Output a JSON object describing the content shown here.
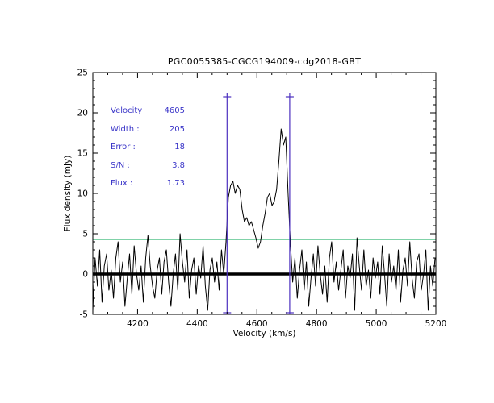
{
  "chart_data": {
    "type": "line",
    "title": "PGC0055385-CGCG194009-cdg2018-GBT",
    "xlabel": "Velocity (km/s)",
    "ylabel": "Flux density (mJy)",
    "xlim": [
      4050,
      5200
    ],
    "ylim": [
      -5,
      25
    ],
    "x_ticks": [
      4200,
      4400,
      4600,
      4800,
      5000,
      5200
    ],
    "y_ticks": [
      -5,
      0,
      5,
      10,
      15,
      20,
      25
    ],
    "x_minor_step": 50,
    "y_minor_step": 1,
    "grid": "off",
    "legend": "none",
    "baseline_y": 0,
    "threshold_line": {
      "y": 4.3,
      "color": "#00a651"
    },
    "signal_boundaries": {
      "x": [
        4500,
        4710
      ],
      "y_top": 22,
      "y_bottom": -4.8,
      "color": "#4b2fbf"
    },
    "annotation_color": "#3a35c8",
    "annotations": [
      {
        "label": "Velocity",
        "value": "4605"
      },
      {
        "label": "Width :",
        "value": "205"
      },
      {
        "label": "Error :",
        "value": "18"
      },
      {
        "label": "S/N :",
        "value": "3.8"
      },
      {
        "label": "Flux :",
        "value": "1.73"
      }
    ],
    "series": [
      {
        "name": "spectrum",
        "color": "#000000",
        "x_start": 4050,
        "x_step": 7.7,
        "flux": [
          -4.5,
          2.0,
          -1.5,
          3.0,
          -3.5,
          1.0,
          2.5,
          -2.0,
          0.5,
          -3.0,
          2.0,
          4.0,
          -1.0,
          1.5,
          -4.0,
          -0.5,
          2.5,
          -2.5,
          3.5,
          0.0,
          -2.0,
          1.0,
          -3.5,
          2.0,
          4.8,
          1.0,
          -1.5,
          -3.0,
          0.5,
          2.0,
          -2.5,
          1.5,
          3.0,
          -1.0,
          -4.0,
          0.0,
          2.5,
          -2.0,
          5.0,
          1.5,
          -1.0,
          3.0,
          -3.0,
          0.5,
          2.0,
          -2.5,
          1.0,
          -0.5,
          3.5,
          -1.5,
          -4.5,
          0.5,
          2.0,
          -1.0,
          1.5,
          -2.0,
          3.0,
          0.0,
          4.0,
          9.5,
          11.0,
          11.5,
          10.0,
          11.0,
          10.5,
          8.0,
          6.5,
          7.0,
          6.0,
          6.5,
          5.5,
          4.5,
          3.2,
          4.0,
          6.0,
          7.5,
          9.5,
          10.0,
          8.5,
          9.0,
          10.5,
          14.0,
          18.0,
          16.0,
          17.0,
          10.0,
          4.0,
          -1.0,
          2.0,
          -3.0,
          0.5,
          3.0,
          -2.0,
          1.5,
          -4.0,
          -0.5,
          2.5,
          -1.5,
          3.5,
          0.0,
          -2.5,
          1.0,
          -3.5,
          2.0,
          4.0,
          -1.0,
          1.5,
          -2.0,
          0.5,
          3.0,
          -3.0,
          1.0,
          -0.5,
          2.5,
          -4.5,
          4.5,
          1.0,
          -2.0,
          3.0,
          -1.5,
          0.5,
          -3.0,
          2.0,
          -0.5,
          1.5,
          -2.5,
          3.5,
          0.0,
          -4.0,
          2.5,
          -1.0,
          1.0,
          -2.0,
          3.0,
          -3.5,
          0.5,
          2.0,
          -1.5,
          4.0,
          -0.5,
          -3.0,
          1.5,
          2.5,
          -2.0,
          0.0,
          3.0,
          -4.5,
          1.0,
          -1.5,
          2.0
        ]
      }
    ]
  }
}
